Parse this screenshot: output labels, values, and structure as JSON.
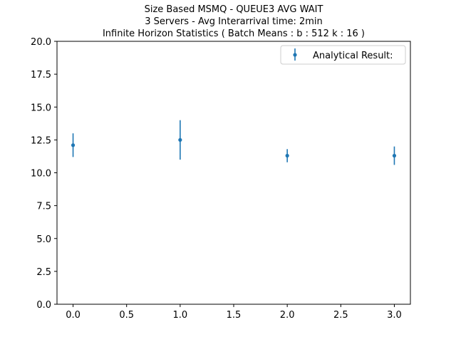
{
  "chart_data": {
    "type": "scatter",
    "title_lines": [
      "Size Based MSMQ - QUEUE3 AVG WAIT",
      "3 Servers -  Avg Interarrival time: 2min",
      " Infinite Horizon Statistics ( Batch Means : b : 512  k : 16 )"
    ],
    "xlabel": "",
    "ylabel": "",
    "xlim": [
      -0.15,
      3.15
    ],
    "ylim": [
      0,
      20
    ],
    "x_ticks": [
      "0.0",
      "0.5",
      "1.0",
      "1.5",
      "2.0",
      "2.5",
      "3.0"
    ],
    "y_ticks": [
      "0.0",
      "2.5",
      "5.0",
      "7.5",
      "10.0",
      "12.5",
      "15.0",
      "17.5",
      "20.0"
    ],
    "grid": false,
    "legend_position": "top-right",
    "series": [
      {
        "name": "Analytical Result:",
        "color": "#1f77b4",
        "marker": "circle",
        "x": [
          0,
          1,
          2,
          3
        ],
        "y": [
          12.1,
          12.5,
          11.3,
          11.3
        ],
        "err_low": [
          11.2,
          11.0,
          10.8,
          10.6
        ],
        "err_high": [
          13.0,
          14.0,
          11.8,
          12.0
        ]
      }
    ]
  }
}
